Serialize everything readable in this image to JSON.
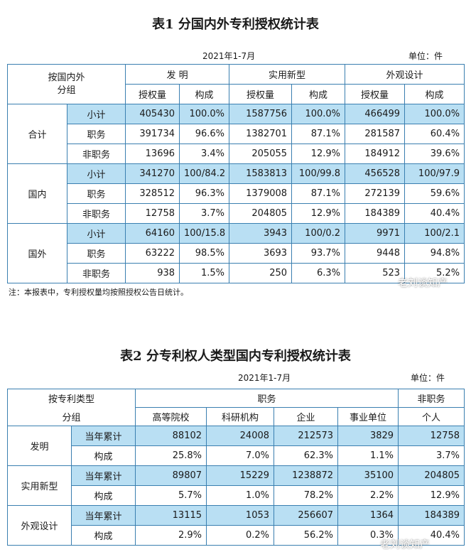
{
  "table1": {
    "title": "表1  分国内外专利授权统计表",
    "period": "2021年1-7月",
    "unit": "单位：件",
    "corner_label_1": "按国内外",
    "corner_label_2": "分组",
    "groups": [
      "发  明",
      "实用新型",
      "外观设计"
    ],
    "subheaders": [
      "授权量",
      "构成",
      "授权量",
      "构成",
      "授权量",
      "构成"
    ],
    "sections": [
      {
        "name": "合计",
        "rows": [
          {
            "label": "小计",
            "values": [
              "405430",
              "100.0%",
              "1587756",
              "100.0%",
              "466499",
              "100.0%"
            ]
          },
          {
            "label": "职务",
            "values": [
              "391734",
              "96.6%",
              "1382701",
              "87.1%",
              "281587",
              "60.4%"
            ]
          },
          {
            "label": "非职务",
            "values": [
              "13696",
              "3.4%",
              "205055",
              "12.9%",
              "184912",
              "39.6%"
            ]
          }
        ]
      },
      {
        "name": "国内",
        "rows": [
          {
            "label": "小计",
            "values": [
              "341270",
              "100/84.2",
              "1583813",
              "100/99.8",
              "456528",
              "100/97.9"
            ]
          },
          {
            "label": "职务",
            "values": [
              "328512",
              "96.3%",
              "1379008",
              "87.1%",
              "272139",
              "59.6%"
            ]
          },
          {
            "label": "非职务",
            "values": [
              "12758",
              "3.7%",
              "204805",
              "12.9%",
              "184389",
              "40.4%"
            ]
          }
        ]
      },
      {
        "name": "国外",
        "rows": [
          {
            "label": "小计",
            "values": [
              "64160",
              "100/15.8",
              "3943",
              "100/0.2",
              "9971",
              "100/2.1"
            ]
          },
          {
            "label": "职务",
            "values": [
              "63222",
              "98.5%",
              "3693",
              "93.7%",
              "9448",
              "94.8%"
            ]
          },
          {
            "label": "非职务",
            "values": [
              "938",
              "1.5%",
              "250",
              "6.3%",
              "523",
              "5.2%"
            ]
          }
        ]
      }
    ],
    "note": "注：本报表中，专利授权量均按照授权公告日统计。"
  },
  "table2": {
    "title": "表2  分专利权人类型国内专利授权统计表",
    "period": "2021年1-7月",
    "unit": "单位：件",
    "corner_label_1": "按专利类型",
    "corner_label_2": "分组",
    "group_service": "职务",
    "group_nonservice": "非职务",
    "subheaders": [
      "高等院校",
      "科研机构",
      "企业",
      "事业单位",
      "个人"
    ],
    "sections": [
      {
        "name": "发明",
        "rows": [
          {
            "label": "当年累计",
            "values": [
              "88102",
              "24008",
              "212573",
              "3829",
              "12758"
            ]
          },
          {
            "label": "构成",
            "values": [
              "25.8%",
              "7.0%",
              "62.3%",
              "1.1%",
              "3.7%"
            ]
          }
        ]
      },
      {
        "name": "实用新型",
        "rows": [
          {
            "label": "当年累计",
            "values": [
              "89807",
              "15229",
              "1238872",
              "35100",
              "204805"
            ]
          },
          {
            "label": "构成",
            "values": [
              "5.7%",
              "1.0%",
              "78.2%",
              "2.2%",
              "12.9%"
            ]
          }
        ]
      },
      {
        "name": "外观设计",
        "rows": [
          {
            "label": "当年累计",
            "values": [
              "13115",
              "1053",
              "256607",
              "1364",
              "184389"
            ]
          },
          {
            "label": "构成",
            "values": [
              "2.9%",
              "0.2%",
              "56.2%",
              "0.3%",
              "40.4%"
            ]
          }
        ]
      }
    ]
  },
  "watermark": "老刘谈知产",
  "colors": {
    "highlight": "#b9dff3",
    "border": "#3a7fb0"
  }
}
